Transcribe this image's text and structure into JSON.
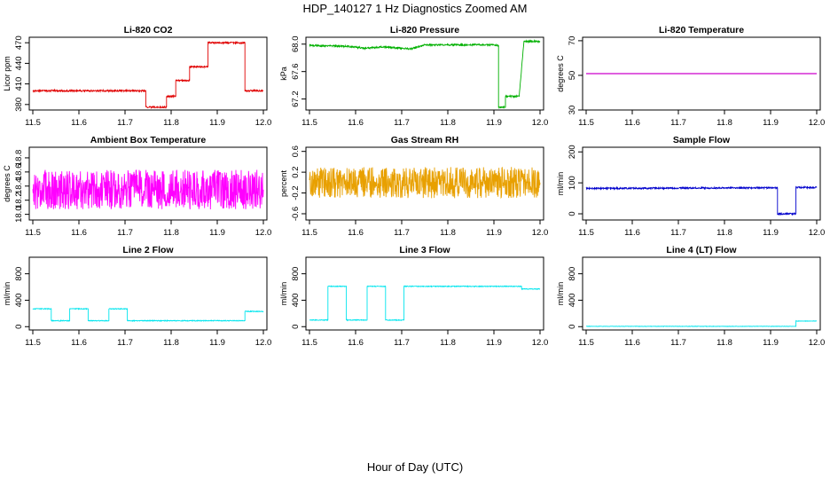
{
  "main_title": "HDP_140127  1 Hz Diagnostics Zoomed AM",
  "x_label": "Hour of Day (UTC)",
  "chart_data": [
    {
      "type": "line",
      "title": "Li-820 CO2",
      "ylabel": "Licor ppm",
      "color": "#e00000",
      "xlim": [
        11.5,
        12.0
      ],
      "ylim": [
        372,
        478
      ],
      "yticks": [
        380,
        410,
        440,
        470
      ],
      "x": [
        11.5,
        11.745,
        11.745,
        11.79,
        11.79,
        11.81,
        11.81,
        11.84,
        11.84,
        11.88,
        11.88,
        11.96,
        11.96,
        12.0
      ],
      "series": [
        {
          "values": [
            400,
            400,
            376,
            376,
            392,
            392,
            415,
            415,
            435,
            435,
            470,
            470,
            400,
            400
          ],
          "noise": 1.2
        }
      ]
    },
    {
      "type": "line",
      "title": "Li-820 Pressure",
      "ylabel": "kPa",
      "color": "#00b000",
      "xlim": [
        11.5,
        12.0
      ],
      "ylim": [
        67.04,
        68.1
      ],
      "yticks": [
        67.2,
        67.6,
        68.0
      ],
      "x": [
        11.5,
        11.58,
        11.62,
        11.66,
        11.72,
        11.75,
        11.9,
        11.91,
        11.91,
        11.925,
        11.925,
        11.955,
        11.955,
        11.965,
        11.965,
        12.0
      ],
      "series": [
        {
          "values": [
            67.98,
            67.97,
            67.94,
            67.96,
            67.93,
            67.99,
            67.99,
            67.98,
            67.08,
            67.08,
            67.24,
            67.24,
            67.26,
            68.03,
            68.04,
            68.04
          ],
          "noise": 0.012
        }
      ]
    },
    {
      "type": "line",
      "title": "Li-820 Temperature",
      "ylabel": "degrees C",
      "color": "#cc00cc",
      "xlim": [
        11.5,
        12.0
      ],
      "ylim": [
        30,
        72
      ],
      "yticks": [
        30,
        50,
        70
      ],
      "x": [
        11.5,
        12.0
      ],
      "series": [
        {
          "values": [
            51,
            51
          ],
          "noise": 0
        }
      ]
    },
    {
      "type": "line",
      "title": "Ambient Box Temperature",
      "ylabel": "degrees C",
      "color": "#ff00ff",
      "xlim": [
        11.5,
        12.0
      ],
      "ylim": [
        17.92,
        18.95
      ],
      "yticks": [
        18.0,
        18.2,
        18.4,
        18.6,
        18.8
      ],
      "x": [
        11.5,
        12.0
      ],
      "series": [
        {
          "values": [
            18.35,
            18.35
          ],
          "noise": 0.28
        }
      ]
    },
    {
      "type": "line",
      "title": "Gas Stream RH",
      "ylabel": "percent",
      "color": "#e8a000",
      "xlim": [
        11.5,
        12.0
      ],
      "ylim": [
        -0.72,
        0.68
      ],
      "yticks": [
        -0.6,
        -0.2,
        0.2,
        0.6
      ],
      "x": [
        11.5,
        12.0
      ],
      "series": [
        {
          "values": [
            0.0,
            0.0
          ],
          "noise": 0.3
        }
      ]
    },
    {
      "type": "line",
      "title": "Sample Flow",
      "ylabel": "ml/min",
      "color": "#0000cc",
      "xlim": [
        11.5,
        12.0
      ],
      "ylim": [
        -20,
        215
      ],
      "yticks": [
        0,
        100,
        200
      ],
      "x": [
        11.5,
        11.915,
        11.915,
        11.955,
        11.955,
        12.0
      ],
      "series": [
        {
          "values": [
            82,
            84,
            0,
            0,
            85,
            85
          ],
          "noise": 2.5
        }
      ]
    },
    {
      "type": "line",
      "title": "Line 2 Flow",
      "ylabel": "ml/min",
      "color": "#00e5ee",
      "xlim": [
        11.5,
        12.0
      ],
      "ylim": [
        -50,
        1050
      ],
      "yticks": [
        0,
        400,
        800
      ],
      "x": [
        11.5,
        11.54,
        11.54,
        11.58,
        11.58,
        11.62,
        11.62,
        11.665,
        11.665,
        11.705,
        11.705,
        11.96,
        11.96,
        12.0
      ],
      "series": [
        {
          "values": [
            270,
            270,
            90,
            90,
            270,
            270,
            90,
            90,
            270,
            270,
            90,
            90,
            230,
            230
          ],
          "noise": 6
        }
      ]
    },
    {
      "type": "line",
      "title": "Line 3 Flow",
      "ylabel": "ml/min",
      "color": "#00e5ee",
      "xlim": [
        11.5,
        12.0
      ],
      "ylim": [
        -50,
        1050
      ],
      "yticks": [
        0,
        400,
        800
      ],
      "x": [
        11.5,
        11.54,
        11.54,
        11.58,
        11.58,
        11.625,
        11.625,
        11.665,
        11.665,
        11.705,
        11.705,
        11.96,
        11.96,
        12.0
      ],
      "series": [
        {
          "values": [
            100,
            100,
            610,
            610,
            100,
            100,
            610,
            610,
            100,
            100,
            610,
            610,
            570,
            570
          ],
          "noise": 6
        }
      ]
    },
    {
      "type": "line",
      "title": "Line 4 (LT) Flow",
      "ylabel": "ml/min",
      "color": "#00e5ee",
      "xlim": [
        11.5,
        12.0
      ],
      "ylim": [
        -50,
        1050
      ],
      "yticks": [
        0,
        400,
        800
      ],
      "x": [
        11.5,
        11.955,
        11.955,
        12.0
      ],
      "series": [
        {
          "values": [
            5,
            5,
            85,
            85
          ],
          "noise": 3
        }
      ]
    }
  ],
  "x_ticks": [
    "11.5",
    "11.6",
    "11.7",
    "11.8",
    "11.9",
    "12.0"
  ]
}
